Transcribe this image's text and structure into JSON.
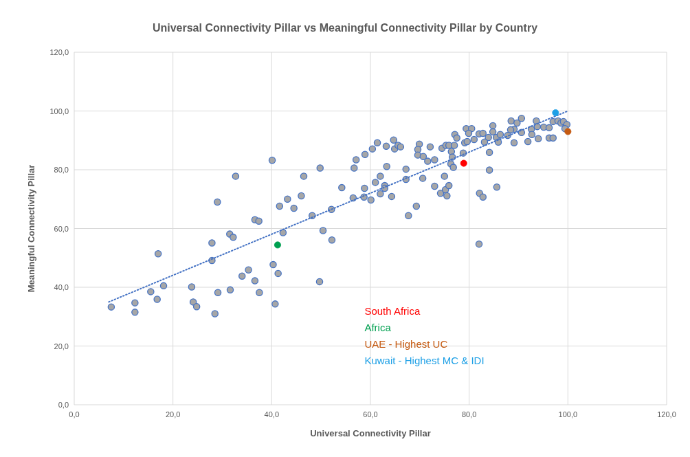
{
  "chart_data": {
    "type": "scatter",
    "title": "Universal Connectivity Pillar vs Meaningful Connectivity Pillar by Country",
    "xlabel": "Universal Connectivity Pillar",
    "ylabel": "Meaningful Connectivity Pillar",
    "xlim": [
      0,
      120
    ],
    "ylim": [
      0,
      120
    ],
    "xticks": [
      {
        "value": 0,
        "label": "0,0"
      },
      {
        "value": 20,
        "label": "20,0"
      },
      {
        "value": 40,
        "label": "40,0"
      },
      {
        "value": 60,
        "label": "60,0"
      },
      {
        "value": 80,
        "label": "80,0"
      },
      {
        "value": 100,
        "label": "100,0"
      },
      {
        "value": 120,
        "label": "120,0"
      }
    ],
    "yticks": [
      {
        "value": 0,
        "label": "0,0"
      },
      {
        "value": 20,
        "label": "20,0"
      },
      {
        "value": 40,
        "label": "40,0"
      },
      {
        "value": 60,
        "label": "60,0"
      },
      {
        "value": 80,
        "label": "80,0"
      },
      {
        "value": 100,
        "label": "100,0"
      },
      {
        "value": 120,
        "label": "120,0"
      }
    ],
    "grid": true,
    "legend": "bottom right",
    "marker": "circle",
    "series": [
      {
        "color": "#a6a6a6",
        "x": [
          7.5,
          12.3,
          12.3,
          15.5,
          17,
          16.8,
          18.1,
          23.8,
          24.1,
          24.8,
          27.9,
          27.9,
          29,
          28.5,
          29.1,
          31.5,
          32.2,
          31.6,
          32.7,
          34,
          35.3,
          36.6,
          37.4,
          36.6,
          37.5,
          40.1,
          40.3,
          40.7,
          41.3,
          41.6,
          42.3,
          43.2,
          44.5,
          46,
          46.5,
          48.2,
          49.7,
          49.8,
          50.4,
          52.2,
          52.1,
          54.2,
          56.7,
          57.1,
          58.9,
          60.4,
          61.4,
          63.2,
          64.7,
          64.9,
          65.6,
          66.1,
          63.3,
          56.5,
          58.8,
          58.7,
          60.1,
          61,
          62,
          62.9,
          62.9,
          62,
          64.3,
          67.2,
          67.2,
          69.3,
          67.7,
          70.6,
          69.9,
          69.6,
          69.6,
          70.7,
          71.6,
          72.1,
          73,
          75,
          73,
          74.2,
          75.2,
          75.9,
          75.5,
          74.5,
          75.3,
          75.9,
          77,
          76.4,
          76.6,
          76.3,
          76.8,
          77.1,
          77.5,
          78.8,
          79.1,
          79.4,
          80.5,
          79.9,
          79.6,
          81,
          82,
          82.8,
          84.1,
          84.1,
          85.6,
          82.1,
          82.8,
          82,
          84.8,
          83.9,
          84.8,
          85.5,
          86.3,
          85.9,
          83.1,
          87.8,
          88.5,
          89.7,
          89.1,
          88.4,
          90.6,
          90.6,
          89.1,
          91.9,
          92.6,
          92.7,
          93.6,
          93.8,
          94,
          95.1,
          96.2,
          96.2,
          97,
          97,
          98,
          98.6,
          99.1,
          99.8,
          99.4
        ],
        "values": [
          33.3,
          34.7,
          31.5,
          38.5,
          51.4,
          35.9,
          40.5,
          40.1,
          35,
          33.4,
          49.1,
          55.1,
          69,
          31,
          38.2,
          58.1,
          57,
          39.1,
          77.8,
          43.8,
          45.9,
          63,
          62.5,
          42.2,
          38.2,
          83.2,
          47.7,
          34.3,
          44.7,
          67.6,
          58.6,
          70,
          66.9,
          71.1,
          77.8,
          64.4,
          41.9,
          80.6,
          59.3,
          56.1,
          66.5,
          73.9,
          80.6,
          83.4,
          85.2,
          87.1,
          89.2,
          88,
          90.1,
          87.1,
          88.3,
          87.8,
          81.1,
          70.4,
          73.7,
          70.7,
          69.7,
          75.7,
          77.8,
          74.6,
          73.7,
          71.8,
          70.9,
          80.2,
          76.7,
          67.6,
          64.4,
          77.1,
          88.7,
          86.9,
          85,
          84.5,
          82.9,
          87.8,
          83.4,
          77.8,
          74.4,
          72,
          73.2,
          74.6,
          71.1,
          87.3,
          88.3,
          88.3,
          88.3,
          86.2,
          84.3,
          82,
          80.8,
          92,
          90.8,
          85.7,
          89.2,
          94,
          94,
          92.4,
          89.6,
          90.3,
          92.2,
          92.4,
          85.9,
          79.9,
          74.1,
          72,
          70.7,
          54.7,
          95,
          91,
          92.9,
          91,
          92,
          89.4,
          89.4,
          91.7,
          96.6,
          95.9,
          93.8,
          93.6,
          97.5,
          92.7,
          89.2,
          89.6,
          93.8,
          92,
          96.6,
          94.7,
          90.6,
          94.5,
          94.3,
          90.8,
          90.8,
          96.4,
          96.6,
          95.9,
          96.4,
          95.4,
          94
        ]
      },
      {
        "type": "line",
        "color": "#4472c4",
        "line_style": "dotted",
        "marker": "none",
        "x": [
          7,
          100
        ],
        "values": [
          35,
          100
        ]
      },
      {
        "name": "South Africa",
        "color": "#ff0000",
        "x": [
          78.9
        ],
        "values": [
          82.2
        ]
      },
      {
        "name": "Africa",
        "color": "#00a050",
        "x": [
          41.2
        ],
        "values": [
          54.4
        ]
      },
      {
        "name": "UAE - Highest UC",
        "color": "#c55a11",
        "x": [
          100
        ],
        "values": [
          93
        ]
      },
      {
        "name": "Kuwait - Highest MC & IDI",
        "color": "#1ea0e6",
        "x": [
          97.5
        ],
        "values": [
          99.4
        ]
      }
    ]
  }
}
